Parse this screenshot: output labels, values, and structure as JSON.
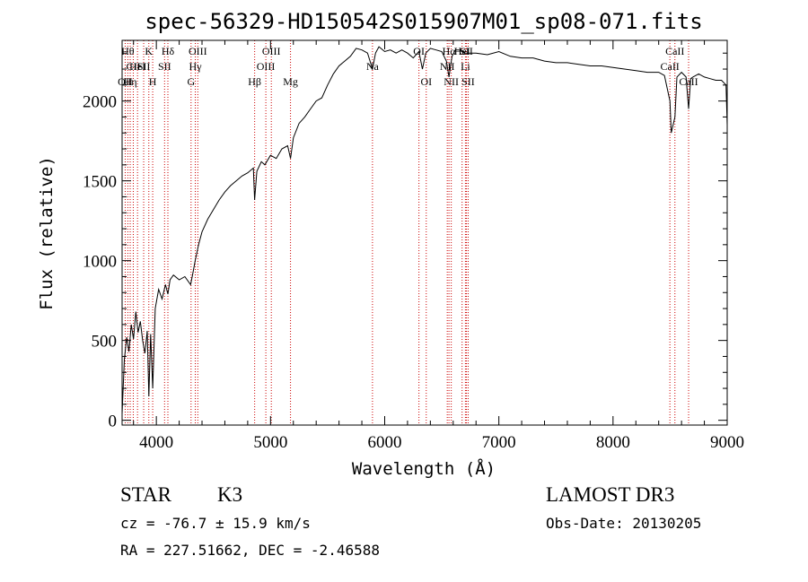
{
  "chart_data": {
    "type": "line",
    "title": "spec-56329-HD150542S015907M01_sp08-071.fits",
    "xlabel": "Wavelength (Å)",
    "ylabel": "Flux (relative)",
    "xlim": [
      3700,
      9000
    ],
    "ylim": [
      -30,
      2380
    ],
    "xticks": [
      4000,
      5000,
      6000,
      7000,
      8000,
      9000
    ],
    "yticks": [
      0,
      500,
      1000,
      1500,
      2000
    ],
    "series": [
      {
        "name": "flux",
        "x": [
          3700,
          3720,
          3740,
          3760,
          3780,
          3800,
          3820,
          3840,
          3860,
          3880,
          3900,
          3920,
          3934,
          3950,
          3968,
          3990,
          4020,
          4050,
          4080,
          4101,
          4120,
          4150,
          4200,
          4250,
          4300,
          4320,
          4340,
          4370,
          4400,
          4450,
          4500,
          4550,
          4600,
          4650,
          4700,
          4750,
          4800,
          4850,
          4861,
          4880,
          4920,
          4950,
          5000,
          5050,
          5100,
          5150,
          5175,
          5200,
          5250,
          5300,
          5350,
          5400,
          5450,
          5500,
          5550,
          5600,
          5650,
          5700,
          5750,
          5800,
          5850,
          5893,
          5920,
          5950,
          6000,
          6050,
          6100,
          6150,
          6200,
          6250,
          6300,
          6330,
          6360,
          6400,
          6450,
          6500,
          6540,
          6563,
          6590,
          6620,
          6650,
          6700,
          6800,
          6900,
          7000,
          7100,
          7200,
          7300,
          7400,
          7500,
          7600,
          7700,
          7800,
          7900,
          8000,
          8100,
          8200,
          8300,
          8400,
          8450,
          8498,
          8510,
          8542,
          8560,
          8600,
          8640,
          8662,
          8680,
          8700,
          8750,
          8800,
          8850,
          8900,
          8950,
          8990,
          9000
        ],
        "values": [
          40,
          380,
          520,
          430,
          600,
          510,
          680,
          550,
          620,
          500,
          420,
          560,
          150,
          540,
          200,
          700,
          820,
          760,
          850,
          790,
          880,
          910,
          880,
          900,
          850,
          920,
          1000,
          1100,
          1180,
          1260,
          1320,
          1380,
          1430,
          1470,
          1500,
          1530,
          1550,
          1580,
          1380,
          1560,
          1620,
          1600,
          1660,
          1640,
          1700,
          1720,
          1640,
          1770,
          1860,
          1900,
          1950,
          2000,
          2020,
          2100,
          2170,
          2220,
          2250,
          2280,
          2330,
          2320,
          2300,
          2200,
          2300,
          2340,
          2310,
          2320,
          2300,
          2320,
          2300,
          2270,
          2310,
          2200,
          2300,
          2330,
          2320,
          2310,
          2250,
          2150,
          2280,
          2320,
          2320,
          2300,
          2300,
          2290,
          2310,
          2280,
          2270,
          2270,
          2250,
          2240,
          2240,
          2230,
          2220,
          2220,
          2210,
          2200,
          2190,
          2180,
          2180,
          2160,
          2000,
          1800,
          1900,
          2150,
          2180,
          2150,
          1950,
          2140,
          2150,
          2170,
          2150,
          2140,
          2130,
          2130,
          2100,
          1850
        ]
      }
    ],
    "lines": [
      {
        "wave": 3727,
        "labels": [
          "OII"
        ],
        "row": 2
      },
      {
        "wave": 3750,
        "labels": [
          "Hθ"
        ],
        "row": 0
      },
      {
        "wave": 3771,
        "labels": [
          "Hη"
        ],
        "row": 2
      },
      {
        "wave": 3798,
        "labels": [
          "CII"
        ],
        "row": 1
      },
      {
        "wave": 3835,
        "labels": [
          "HeI"
        ],
        "row": 1
      },
      {
        "wave": 3889,
        "labels": [
          "SII"
        ],
        "row": 1
      },
      {
        "wave": 3934,
        "labels": [
          "K"
        ],
        "row": 0
      },
      {
        "wave": 3968,
        "labels": [
          "H"
        ],
        "row": 2
      },
      {
        "wave": 4101,
        "labels": [
          "Hδ"
        ],
        "row": 0
      },
      {
        "wave": 4072,
        "labels": [
          "SII"
        ],
        "row": 1
      },
      {
        "wave": 4304,
        "labels": [
          "G"
        ],
        "row": 2
      },
      {
        "wave": 4341,
        "labels": [
          "Hγ"
        ],
        "row": 1
      },
      {
        "wave": 4363,
        "labels": [
          "OIII"
        ],
        "row": 0
      },
      {
        "wave": 4861,
        "labels": [
          "Hβ"
        ],
        "row": 2
      },
      {
        "wave": 4959,
        "labels": [
          "OIII"
        ],
        "row": 1
      },
      {
        "wave": 5007,
        "labels": [
          "OIII"
        ],
        "row": 0
      },
      {
        "wave": 5175,
        "labels": [
          "Mg"
        ],
        "row": 2
      },
      {
        "wave": 5893,
        "labels": [
          "Na"
        ],
        "row": 1
      },
      {
        "wave": 6300,
        "labels": [
          "OI"
        ],
        "row": 0
      },
      {
        "wave": 6364,
        "labels": [
          "OI"
        ],
        "row": 2
      },
      {
        "wave": 6548,
        "labels": [
          "NII"
        ],
        "row": 1
      },
      {
        "wave": 6563,
        "labels": [
          "Hα"
        ],
        "row": 0
      },
      {
        "wave": 6583,
        "labels": [
          "NII"
        ],
        "row": 2
      },
      {
        "wave": 6678,
        "labels": [
          "HeI"
        ],
        "row": 0
      },
      {
        "wave": 6707,
        "labels": [
          "Li"
        ],
        "row": 1
      },
      {
        "wave": 6716,
        "labels": [
          "SII"
        ],
        "row": 0
      },
      {
        "wave": 6731,
        "labels": [
          "SII"
        ],
        "row": 2
      },
      {
        "wave": 8498,
        "labels": [
          "CaII"
        ],
        "row": 1
      },
      {
        "wave": 8542,
        "labels": [
          "CaII"
        ],
        "row": 0
      },
      {
        "wave": 8662,
        "labels": [
          "CaII"
        ],
        "row": 2
      }
    ]
  },
  "footer": {
    "object_type": "STAR",
    "subclass": "K3",
    "survey": "LAMOST DR3",
    "cz": "cz = -76.7 ± 15.9 km/s",
    "obs_date": "Obs-Date: 20130205",
    "coords": "RA = 227.51662, DEC =  -2.46588"
  },
  "colors": {
    "line_marker": "#cc0000",
    "spectrum": "#000000",
    "axes": "#000000"
  }
}
